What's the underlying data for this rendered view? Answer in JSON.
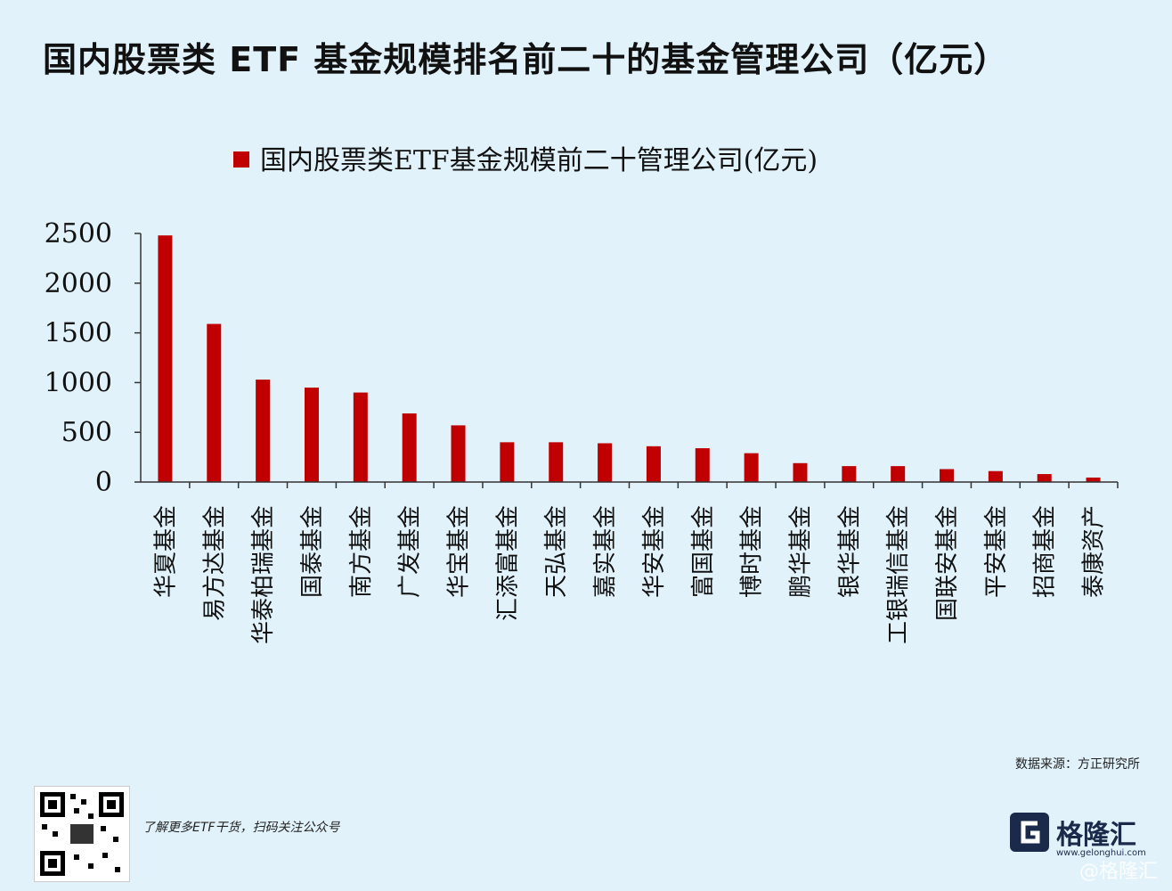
{
  "header": {
    "title": "国内股票类 ETF 基金规模排名前二十的基金管理公司（亿元）"
  },
  "chart_data": {
    "type": "bar",
    "legend": "国内股票类ETF基金规模前二十管理公司(亿元)",
    "legend_position": "top-center",
    "categories": [
      "华夏基金",
      "易方达基金",
      "华泰柏瑞基金",
      "国泰基金",
      "南方基金",
      "广发基金",
      "华宝基金",
      "汇添富基金",
      "天弘基金",
      "嘉实基金",
      "华安基金",
      "富国基金",
      "博时基金",
      "鹏华基金",
      "银华基金",
      "工银瑞信基金",
      "国联安基金",
      "平安基金",
      "招商基金",
      "泰康资产"
    ],
    "series": [
      {
        "name": "国内股票类ETF基金规模前二十管理公司(亿元)",
        "color": "#c00000",
        "values": [
          2480,
          1590,
          1030,
          950,
          900,
          690,
          570,
          400,
          400,
          390,
          360,
          340,
          290,
          190,
          160,
          160,
          130,
          110,
          80,
          45
        ]
      }
    ],
    "yticks": [
      0,
      500,
      1000,
      1500,
      2000,
      2500
    ],
    "ylim": [
      0,
      2500
    ],
    "grid": false
  },
  "footer": {
    "source": "数据来源：方正研究所",
    "qr_caption": "了解更多ETF干货，扫码关注公众号",
    "logo_name": "格隆汇",
    "logo_url": "www.gelonghui.com",
    "watermark": "@格隆汇"
  }
}
